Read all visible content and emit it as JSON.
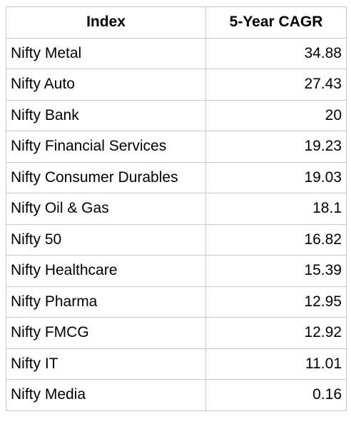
{
  "table": {
    "headers": [
      "Index",
      "5-Year CAGR"
    ],
    "rows": [
      [
        "Nifty Metal",
        "34.88"
      ],
      [
        "Nifty Auto",
        "27.43"
      ],
      [
        "Nifty Bank",
        "20"
      ],
      [
        "Nifty Financial Services",
        "19.23"
      ],
      [
        "Nifty Consumer Durables",
        "19.03"
      ],
      [
        "Nifty Oil & Gas",
        "18.1"
      ],
      [
        "Nifty 50",
        "16.82"
      ],
      [
        "Nifty Healthcare",
        "15.39"
      ],
      [
        "Nifty Pharma",
        "12.95"
      ],
      [
        "Nifty FMCG",
        "12.92"
      ],
      [
        "Nifty IT",
        "11.01"
      ],
      [
        "Nifty Media",
        "0.16"
      ]
    ]
  }
}
